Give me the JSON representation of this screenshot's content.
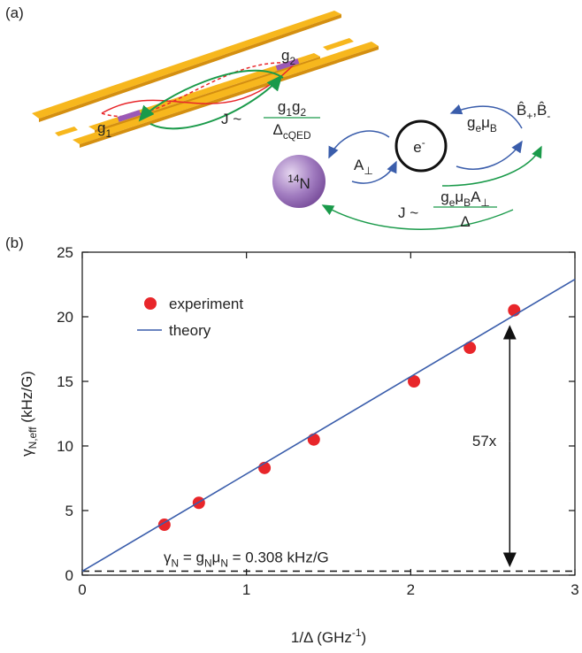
{
  "panel_a": {
    "label": "(a)",
    "g1": [
      "g",
      {
        "sub": "1"
      }
    ],
    "g2": [
      "g",
      {
        "sub": "2"
      }
    ],
    "j_cavity": {
      "lhs": [
        "J ~"
      ],
      "num": [
        "g",
        {
          "sub": "1"
        },
        "g",
        {
          "sub": "2"
        }
      ],
      "den": [
        "Δ",
        {
          "sub": "cQED"
        }
      ]
    },
    "ge_mub": [
      "g",
      {
        "sub": "e"
      },
      "μ",
      {
        "sub": "B"
      }
    ],
    "b_ops": [
      "B̂",
      {
        "sub": "+"
      },
      ",B̂",
      {
        "sub": "-"
      }
    ],
    "a_perp": [
      "A",
      {
        "sub": "⊥"
      }
    ],
    "electron": [
      "e",
      {
        "sup": "-"
      }
    ],
    "nucleus": [
      {
        "sup": "14"
      },
      "N"
    ],
    "j_nuclear": {
      "lhs": [
        "J ~"
      ],
      "num": [
        "g",
        {
          "sub": "e"
        },
        "μ",
        {
          "sub": "B"
        },
        "A",
        {
          "sub": "⊥"
        }
      ],
      "den": [
        "Δ"
      ]
    }
  },
  "chart_data": {
    "type": "scatter",
    "panel_label": "(b)",
    "xlabel": [
      "1/Δ (GHz",
      {
        "sup": "-1"
      },
      ")"
    ],
    "ylabel": [
      "γ",
      {
        "sub": "N,eff"
      },
      " (kHz/G)"
    ],
    "xlim": [
      0,
      3
    ],
    "ylim": [
      0,
      25
    ],
    "xticks": [
      0,
      1,
      2,
      3
    ],
    "yticks": [
      0,
      5,
      10,
      15,
      20,
      25
    ],
    "legend": "upper left",
    "series": [
      {
        "name": "experiment",
        "type": "scatter",
        "color": "#e8262a",
        "x": [
          0.5,
          0.71,
          1.11,
          1.41,
          2.02,
          2.36,
          2.63
        ],
        "values": [
          3.9,
          5.6,
          8.3,
          10.5,
          15.0,
          17.6,
          20.5
        ]
      },
      {
        "name": "theory",
        "type": "line",
        "color": "#3a5dab",
        "x": [
          0,
          3
        ],
        "values": [
          0.3,
          22.9
        ]
      }
    ],
    "hline": {
      "value": 0.308,
      "label": [
        "γ",
        {
          "sub": "N"
        },
        " = g",
        {
          "sub": "N"
        },
        "μ",
        {
          "sub": "N"
        },
        " = 0.308 kHz/G"
      ]
    },
    "annotation": "57x"
  }
}
